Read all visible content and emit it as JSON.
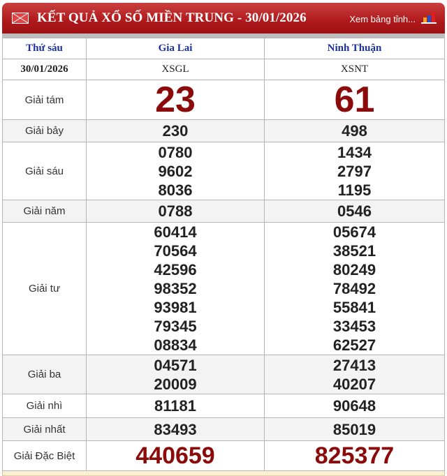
{
  "header": {
    "title": "KẾT QUẢ XỔ SỐ MIỀN TRUNG - 30/01/2026",
    "more_link": "Xem bảng tỉnh...",
    "icons": [
      "mail-icon",
      "bar-chart-icon"
    ],
    "color": "#b0191b"
  },
  "table": {
    "day": "Thứ sáu",
    "date": "30/01/2026",
    "provinces": [
      {
        "name": "Gia Lai",
        "code": "XSGL"
      },
      {
        "name": "Ninh Thuận",
        "code": "XSNT"
      }
    ],
    "prizes": [
      {
        "label": "Giải tám",
        "gl": [
          "23"
        ],
        "nt": [
          "61"
        ]
      },
      {
        "label": "Giải bảy",
        "gl": [
          "230"
        ],
        "nt": [
          "498"
        ]
      },
      {
        "label": "Giải sáu",
        "gl": [
          "0780",
          "9602",
          "8036"
        ],
        "nt": [
          "1434",
          "2797",
          "1195"
        ]
      },
      {
        "label": "Giải năm",
        "gl": [
          "0788"
        ],
        "nt": [
          "0546"
        ]
      },
      {
        "label": "Giải tư",
        "gl": [
          "60414",
          "70564",
          "42596",
          "98352",
          "93981",
          "79345",
          "08834"
        ],
        "nt": [
          "05674",
          "38521",
          "80249",
          "78492",
          "55841",
          "33453",
          "62527"
        ]
      },
      {
        "label": "Giải ba",
        "gl": [
          "04571",
          "20009"
        ],
        "nt": [
          "27413",
          "40207"
        ]
      },
      {
        "label": "Giải nhì",
        "gl": [
          "81181"
        ],
        "nt": [
          "90648"
        ]
      },
      {
        "label": "Giải nhất",
        "gl": [
          "83493"
        ],
        "nt": [
          "85019"
        ]
      },
      {
        "label": "Giải Đặc Biệt",
        "gl": [
          "440659"
        ],
        "nt": [
          "825377"
        ]
      }
    ]
  }
}
